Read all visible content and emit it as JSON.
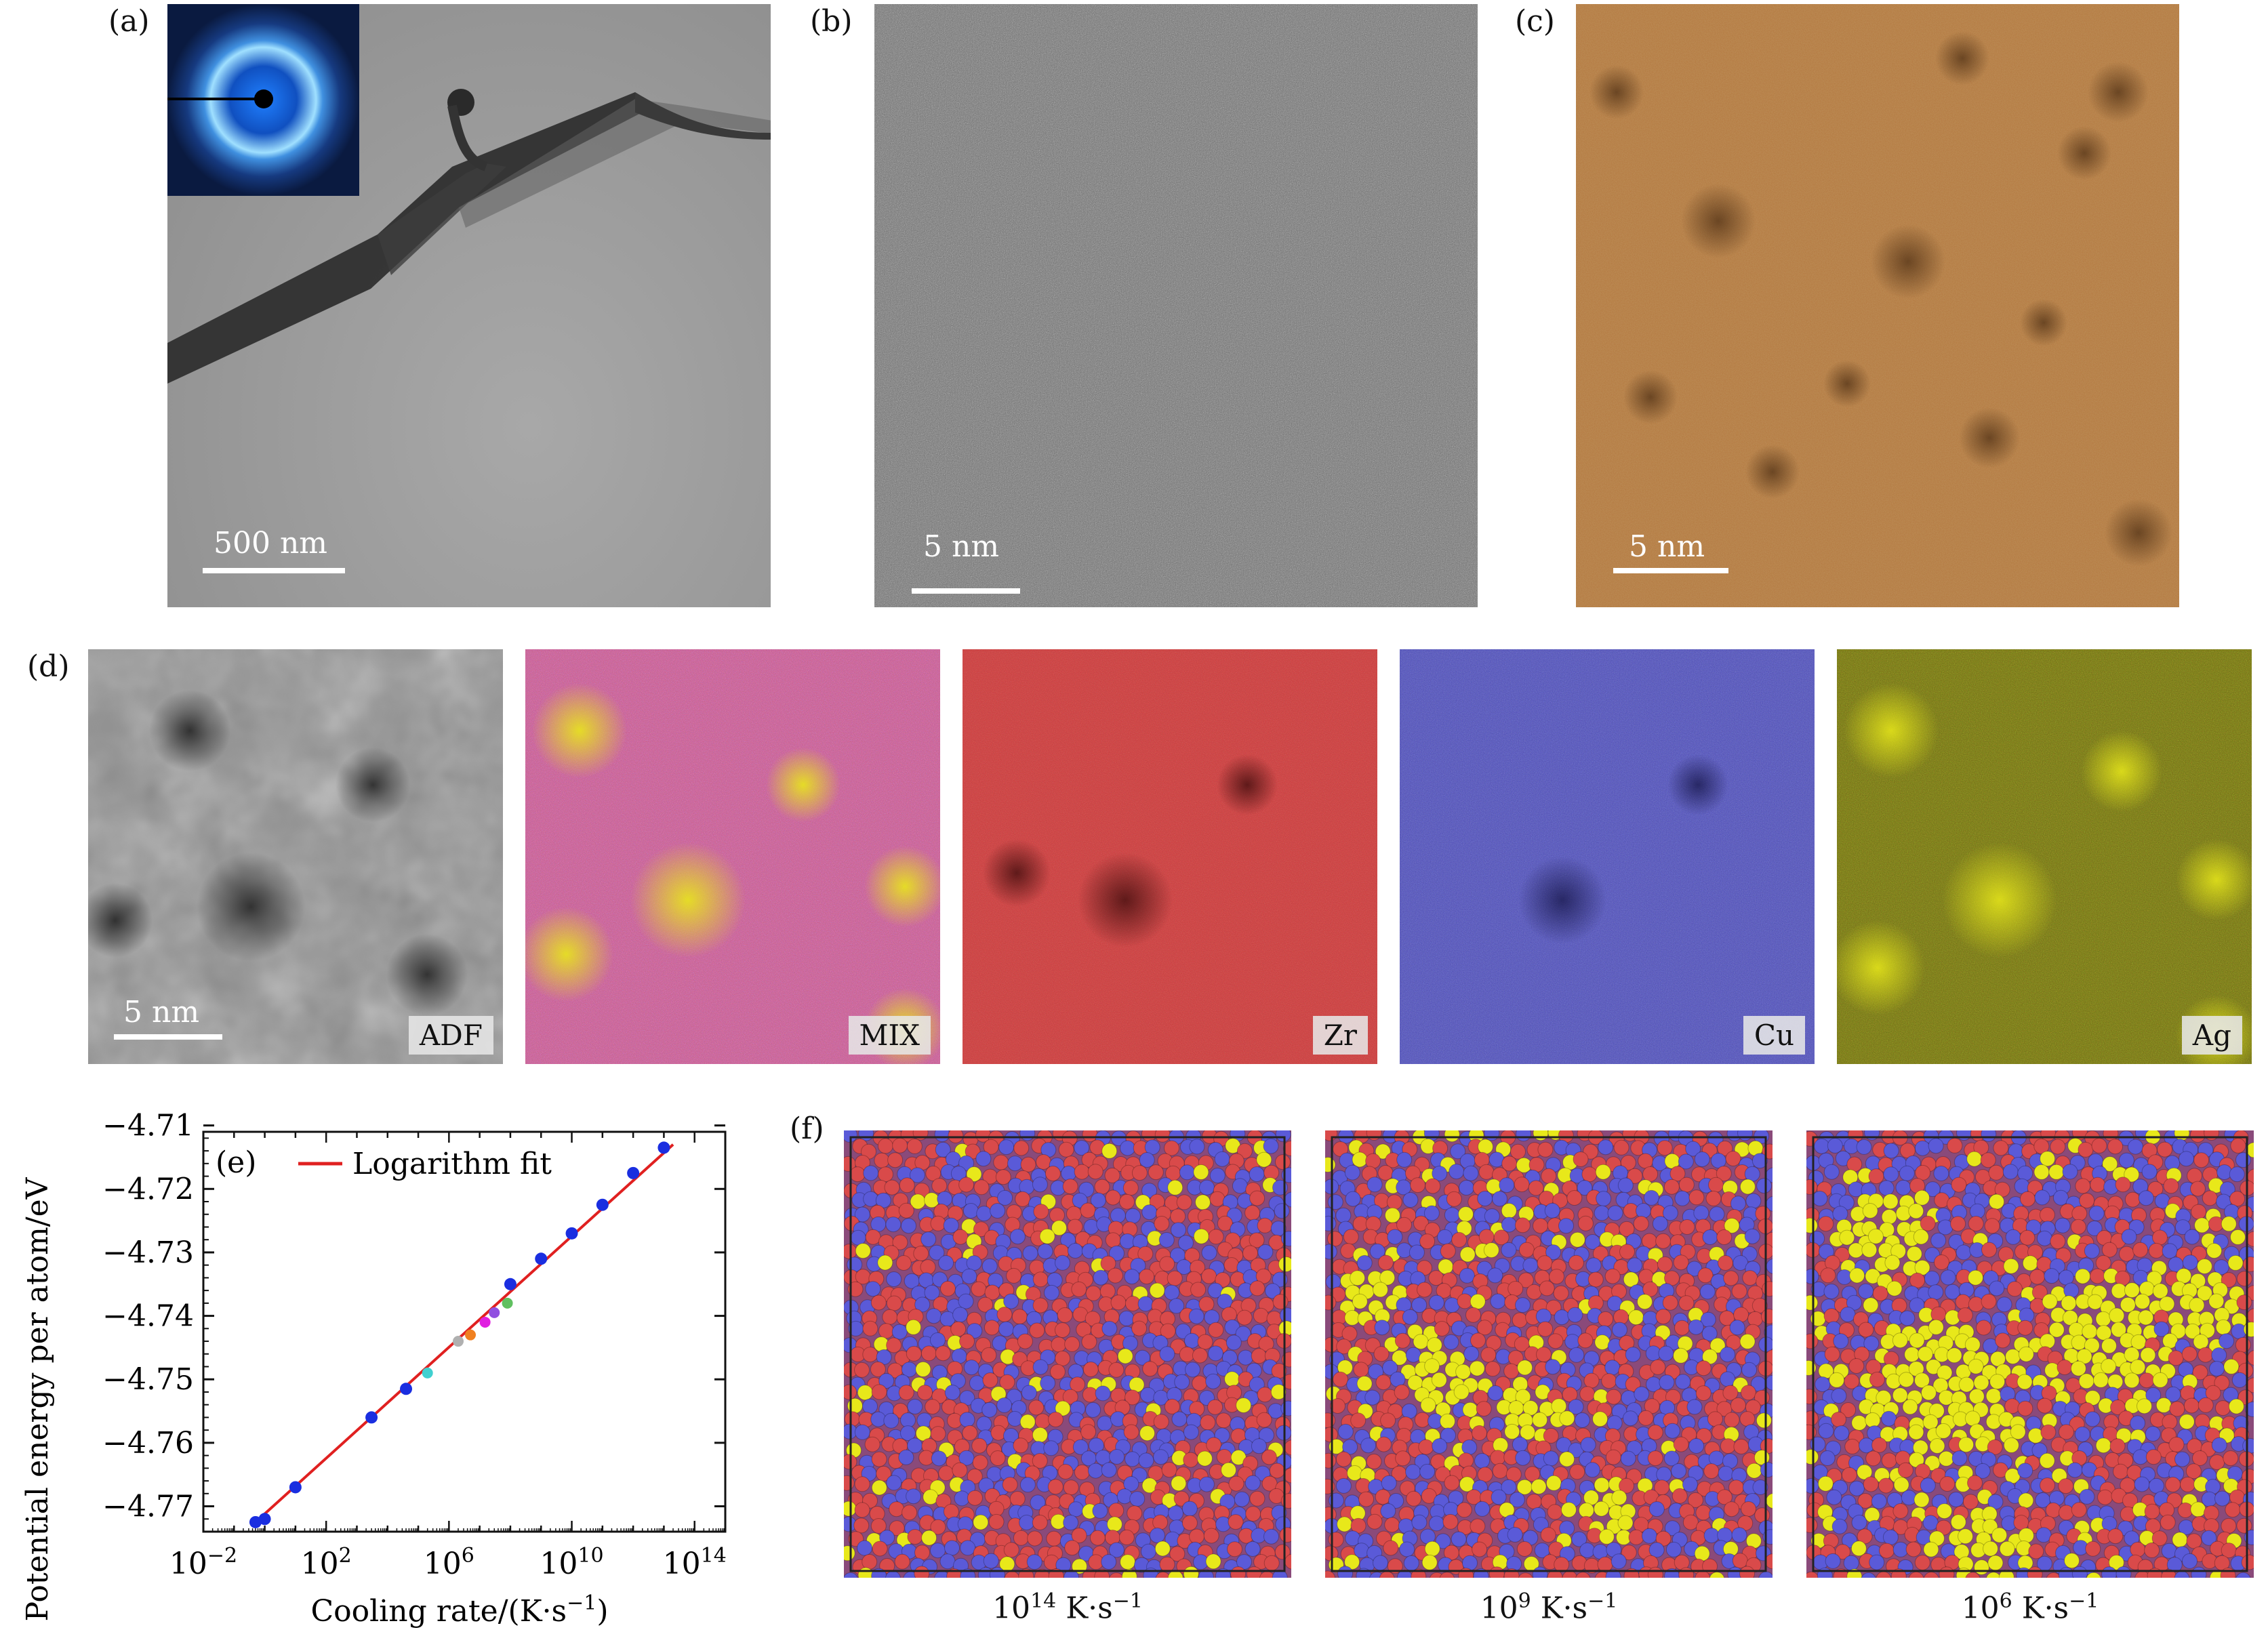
{
  "labels": {
    "a": "(a)",
    "b": "(b)",
    "c": "(c)",
    "d": "(d)",
    "e": "(e)",
    "f": "(f)"
  },
  "panel_a": {
    "scale": "500 nm"
  },
  "panel_b": {
    "scale": "5 nm"
  },
  "panel_c": {
    "scale": "5 nm"
  },
  "panel_d": {
    "scale": "5 nm",
    "tags": [
      "ADF",
      "MIX",
      "Zr",
      "Cu",
      "Ag"
    ]
  },
  "panel_f": {
    "captions": [
      "10^14 K·s^−1",
      "10^9 K·s^−1",
      "10^6 K·s^−1"
    ],
    "caption_base": "10",
    "caption_exps": [
      "14",
      "9",
      "6"
    ],
    "caption_unit": "K·s",
    "caption_unit_exp": "−1"
  },
  "colors": {
    "zr": "#d94a4a",
    "cu": "#5a5ad8",
    "ag": "#e8e81a",
    "fit": "#e02020",
    "point": "#1a2ee0"
  },
  "chart_data": {
    "type": "scatter",
    "legend": "Logarithm fit",
    "ylabel": "Potential energy per atom/eV",
    "xlabel": "Cooling rate/(K·s−1)",
    "x_scale": "log",
    "xlim": [
      0.01,
      1000000000000000.0
    ],
    "ylim": [
      -4.774,
      -4.711
    ],
    "xticks_exp": [
      -2,
      2,
      6,
      10,
      14
    ],
    "yticks": [
      -4.71,
      -4.72,
      -4.73,
      -4.74,
      -4.75,
      -4.76,
      -4.77
    ],
    "ytick_labels": [
      "−4.71",
      "−4.72",
      "−4.73",
      "−4.74",
      "−4.75",
      "−4.76",
      "−4.77"
    ],
    "points": [
      {
        "x": 0.5,
        "y": -4.7725
      },
      {
        "x": 1,
        "y": -4.772
      },
      {
        "x": 10,
        "y": -4.767
      },
      {
        "x": 3000,
        "y": -4.756
      },
      {
        "x": 40000,
        "y": -4.7515
      },
      {
        "x": 100000000.0,
        "y": -4.735
      },
      {
        "x": 1000000000.0,
        "y": -4.731
      },
      {
        "x": 10000000000.0,
        "y": -4.727
      },
      {
        "x": 100000000000.0,
        "y": -4.7225
      },
      {
        "x": 1000000000000.0,
        "y": -4.7175
      },
      {
        "x": 10000000000000.0,
        "y": -4.7135
      }
    ],
    "colored_points": [
      {
        "x": 200000.0,
        "y": -4.749,
        "c": "#40d0d0"
      },
      {
        "x": 2000000.0,
        "y": -4.744,
        "c": "#b0b0b0"
      },
      {
        "x": 5000000.0,
        "y": -4.743,
        "c": "#f08020"
      },
      {
        "x": 15000000.0,
        "y": -4.741,
        "c": "#e020e0"
      },
      {
        "x": 30000000.0,
        "y": -4.7395,
        "c": "#9050e0"
      },
      {
        "x": 80000000.0,
        "y": -4.738,
        "c": "#60c060"
      }
    ],
    "fit": {
      "x": [
        0.5,
        20000000000000.0
      ],
      "y": [
        -4.7725,
        -4.713
      ]
    }
  }
}
